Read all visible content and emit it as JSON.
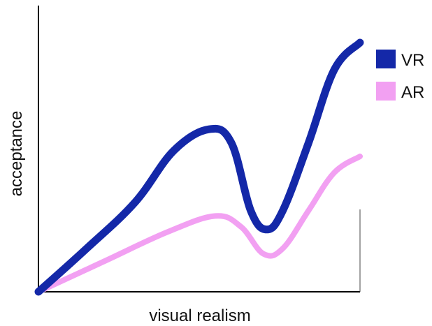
{
  "chart_data": {
    "type": "line",
    "title": "",
    "xlabel": "visual realism",
    "ylabel": "acceptance",
    "grid": false,
    "ticks": false,
    "legend_position": "top-right",
    "colors": {
      "VR": "#1428a8",
      "AR": "#f2a0f2"
    },
    "series": [
      {
        "name": "VR",
        "color": "#1428a8",
        "points": [
          {
            "x": 0,
            "y": 0
          },
          {
            "x": 0.15,
            "y": 0.16
          },
          {
            "x": 0.3,
            "y": 0.33
          },
          {
            "x": 0.42,
            "y": 0.52
          },
          {
            "x": 0.53,
            "y": 0.6
          },
          {
            "x": 0.6,
            "y": 0.55
          },
          {
            "x": 0.66,
            "y": 0.3
          },
          {
            "x": 0.71,
            "y": 0.23
          },
          {
            "x": 0.76,
            "y": 0.3
          },
          {
            "x": 0.84,
            "y": 0.55
          },
          {
            "x": 0.92,
            "y": 0.82
          },
          {
            "x": 1.0,
            "y": 0.92
          }
        ]
      },
      {
        "name": "AR",
        "color": "#f2a0f2",
        "points": [
          {
            "x": 0,
            "y": 0
          },
          {
            "x": 0.2,
            "y": 0.11
          },
          {
            "x": 0.4,
            "y": 0.22
          },
          {
            "x": 0.55,
            "y": 0.28
          },
          {
            "x": 0.63,
            "y": 0.24
          },
          {
            "x": 0.7,
            "y": 0.14
          },
          {
            "x": 0.76,
            "y": 0.16
          },
          {
            "x": 0.84,
            "y": 0.3
          },
          {
            "x": 0.92,
            "y": 0.44
          },
          {
            "x": 1.0,
            "y": 0.5
          }
        ]
      }
    ],
    "xlim": [
      0,
      1
    ],
    "ylim": [
      0,
      1
    ]
  }
}
